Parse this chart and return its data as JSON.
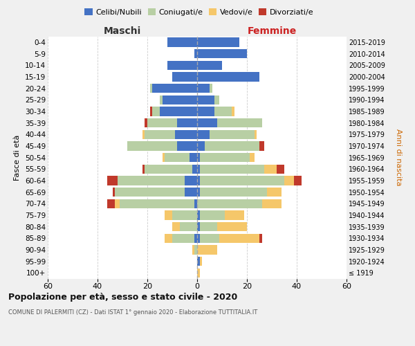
{
  "age_groups": [
    "100+",
    "95-99",
    "90-94",
    "85-89",
    "80-84",
    "75-79",
    "70-74",
    "65-69",
    "60-64",
    "55-59",
    "50-54",
    "45-49",
    "40-44",
    "35-39",
    "30-34",
    "25-29",
    "20-24",
    "15-19",
    "10-14",
    "5-9",
    "0-4"
  ],
  "birth_years": [
    "≤ 1919",
    "1920-1924",
    "1925-1929",
    "1930-1934",
    "1935-1939",
    "1940-1944",
    "1945-1949",
    "1950-1954",
    "1955-1959",
    "1960-1964",
    "1965-1969",
    "1970-1974",
    "1975-1979",
    "1980-1984",
    "1985-1989",
    "1990-1994",
    "1995-1999",
    "2000-2004",
    "2005-2009",
    "2010-2014",
    "2015-2019"
  ],
  "maschi_celibi": [
    0,
    0,
    0,
    1,
    0,
    0,
    1,
    5,
    5,
    2,
    3,
    8,
    9,
    8,
    15,
    14,
    18,
    10,
    12,
    1,
    12
  ],
  "maschi_coniugati": [
    0,
    0,
    1,
    9,
    7,
    10,
    30,
    28,
    27,
    19,
    10,
    20,
    12,
    12,
    3,
    1,
    1,
    0,
    0,
    0,
    0
  ],
  "maschi_vedovi": [
    0,
    0,
    1,
    3,
    3,
    3,
    2,
    0,
    0,
    0,
    1,
    0,
    1,
    0,
    0,
    0,
    0,
    0,
    0,
    0,
    0
  ],
  "maschi_divorziati": [
    0,
    0,
    0,
    0,
    0,
    0,
    3,
    1,
    4,
    1,
    0,
    0,
    0,
    1,
    1,
    0,
    0,
    0,
    0,
    0,
    0
  ],
  "femmine_nubili": [
    0,
    1,
    0,
    1,
    1,
    1,
    0,
    1,
    1,
    1,
    1,
    3,
    5,
    8,
    7,
    7,
    5,
    25,
    10,
    20,
    17
  ],
  "femmine_coniugate": [
    0,
    0,
    0,
    8,
    7,
    10,
    26,
    27,
    34,
    26,
    20,
    22,
    18,
    18,
    7,
    2,
    1,
    0,
    0,
    0,
    0
  ],
  "femmine_vedove": [
    1,
    1,
    8,
    16,
    12,
    8,
    8,
    6,
    4,
    5,
    2,
    0,
    1,
    0,
    1,
    0,
    0,
    0,
    0,
    0,
    0
  ],
  "femmine_divorziate": [
    0,
    0,
    0,
    1,
    0,
    0,
    0,
    0,
    3,
    3,
    0,
    2,
    0,
    0,
    0,
    0,
    0,
    0,
    0,
    0,
    0
  ],
  "color_celibi": "#4472c4",
  "color_coniugati": "#b8cfa4",
  "color_vedovi": "#f5c76a",
  "color_divorziati": "#c0392b",
  "xlim": 60,
  "title": "Popolazione per età, sesso e stato civile - 2020",
  "subtitle": "COMUNE DI PALERMITI (CZ) - Dati ISTAT 1° gennaio 2020 - Elaborazione TUTTITALIA.IT",
  "ylabel_left": "Fasce di età",
  "ylabel_right": "Anni di nascita",
  "label_maschi": "Maschi",
  "label_femmine": "Femmine",
  "legend_labels": [
    "Celibi/Nubili",
    "Coniugati/e",
    "Vedovi/e",
    "Divorziati/e"
  ],
  "bg_color": "#f0f0f0"
}
